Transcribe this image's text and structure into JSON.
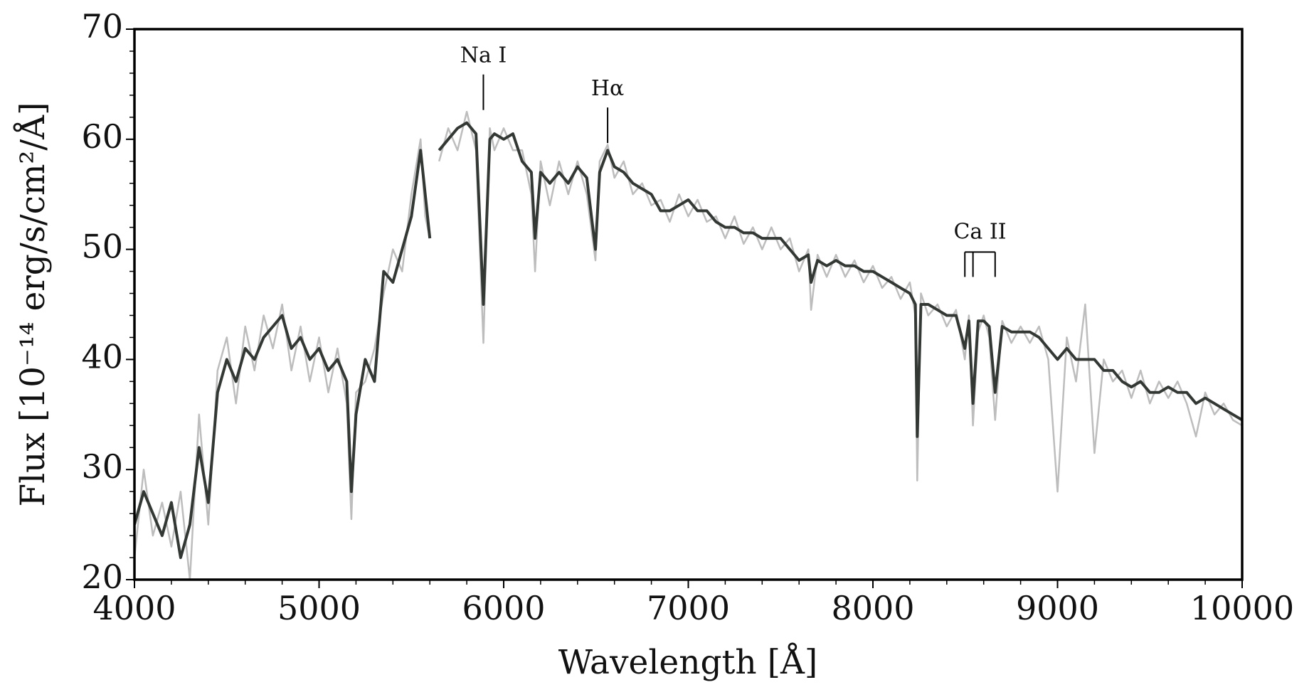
{
  "chart_data": {
    "type": "line",
    "xlabel": "Wavelength [Å]",
    "ylabel": "Flux [10⁻¹⁴ erg/s/cm²/Å]",
    "xlim": [
      4000,
      10000
    ],
    "xticks": [
      4000,
      5000,
      6000,
      7000,
      8000,
      9000,
      10000
    ],
    "ylim": [
      20,
      70
    ],
    "yticks": [
      20,
      30,
      40,
      50,
      60,
      70
    ],
    "xminor_step": 200,
    "yminor_step": 2,
    "x": [
      4000,
      4050,
      4100,
      4150,
      4200,
      4250,
      4300,
      4350,
      4400,
      4450,
      4500,
      4550,
      4600,
      4650,
      4700,
      4750,
      4800,
      4850,
      4900,
      4950,
      5000,
      5050,
      5100,
      5150,
      5175,
      5200,
      5250,
      5300,
      5350,
      5400,
      5450,
      5500,
      5550,
      5575,
      5600,
      5625,
      5650,
      5700,
      5750,
      5800,
      5850,
      5890,
      5925,
      5950,
      6000,
      6050,
      6100,
      6150,
      6170,
      6200,
      6250,
      6300,
      6350,
      6400,
      6450,
      6497,
      6520,
      6563,
      6600,
      6650,
      6700,
      6750,
      6800,
      6850,
      6900,
      6950,
      7000,
      7050,
      7100,
      7150,
      7200,
      7250,
      7300,
      7350,
      7400,
      7450,
      7500,
      7550,
      7600,
      7650,
      7665,
      7700,
      7750,
      7800,
      7850,
      7900,
      7950,
      8000,
      8050,
      8100,
      8150,
      8200,
      8230,
      8240,
      8260,
      8300,
      8350,
      8400,
      8450,
      8498,
      8520,
      8542,
      8570,
      8600,
      8630,
      8662,
      8700,
      8750,
      8800,
      8850,
      8900,
      8950,
      9000,
      9050,
      9100,
      9150,
      9200,
      9250,
      9300,
      9350,
      9400,
      9450,
      9500,
      9550,
      9600,
      9650,
      9700,
      9750,
      9800,
      9850,
      9900,
      9950,
      10000
    ],
    "series": [
      {
        "color": "#bdbdbd",
        "values": [
          22,
          30,
          24,
          27,
          23,
          28,
          20,
          35,
          25,
          39,
          42,
          36,
          43,
          39,
          44,
          41,
          45,
          39,
          43,
          38,
          42,
          37,
          41,
          36,
          25.5,
          37,
          38,
          41,
          46,
          50,
          48,
          55,
          60,
          53,
          51,
          null,
          58,
          61,
          59,
          62.5,
          59,
          41.5,
          61,
          59,
          61,
          59,
          59,
          55,
          48,
          58,
          54,
          58,
          55,
          58,
          55,
          49,
          58,
          59.5,
          56.5,
          58,
          55,
          56,
          54,
          54.5,
          52.5,
          55,
          53,
          54.5,
          52.5,
          53,
          51,
          53,
          50.5,
          52,
          50,
          52,
          50,
          51,
          48,
          50,
          44.5,
          49.5,
          47.5,
          49.5,
          47.5,
          49,
          47,
          48.5,
          46.5,
          47.5,
          45.5,
          47,
          44,
          29,
          46,
          44,
          45,
          43,
          44.5,
          40,
          44,
          34,
          42.5,
          44,
          42,
          34.5,
          43.5,
          41.5,
          43,
          41.5,
          43,
          40,
          28,
          42,
          38,
          45,
          31.5,
          40,
          38,
          39,
          36.5,
          39,
          36,
          38,
          36.5,
          38,
          36,
          33,
          37,
          35,
          36,
          34.5,
          34
        ]
      },
      {
        "color": "#333835",
        "values": [
          25,
          28,
          26,
          24,
          27,
          22,
          25,
          32,
          27,
          37,
          40,
          38,
          41,
          40,
          42,
          43,
          44,
          41,
          42,
          40,
          41,
          39,
          40,
          38,
          28,
          35,
          40,
          38,
          48,
          47,
          50,
          53,
          59,
          55,
          51,
          null,
          59,
          60,
          61,
          61.5,
          60.5,
          45,
          60,
          60.5,
          60,
          60.5,
          58,
          57,
          51,
          57,
          56,
          57,
          56,
          57.5,
          56.5,
          50,
          57,
          59,
          57.5,
          57,
          56,
          55.5,
          55,
          53.5,
          53.5,
          54,
          54.5,
          53.5,
          53.5,
          52.5,
          52,
          52,
          51.5,
          51.5,
          51,
          51,
          51,
          50,
          49,
          49.5,
          47,
          49,
          48.5,
          49,
          48.5,
          48.5,
          48,
          48,
          47.5,
          47,
          46.5,
          46,
          45,
          33,
          45,
          45,
          44.5,
          44,
          44,
          41,
          43.5,
          36,
          43.5,
          43.5,
          43,
          37,
          43,
          42.5,
          42.5,
          42.5,
          42,
          41,
          40,
          41,
          40,
          40,
          40,
          39,
          39,
          38,
          37.5,
          38,
          37,
          37,
          37.5,
          37,
          37,
          36,
          36.5,
          36,
          35.5,
          35,
          34.5
        ]
      }
    ],
    "annotations": [
      {
        "text": "Na I",
        "x": 5890,
        "y": 67.5
      },
      {
        "text": "Hα",
        "x": 6563,
        "y": 64.5
      },
      {
        "text": "Ca II",
        "y": 51.5,
        "lines": [
          8498,
          8542,
          8662
        ]
      }
    ]
  }
}
